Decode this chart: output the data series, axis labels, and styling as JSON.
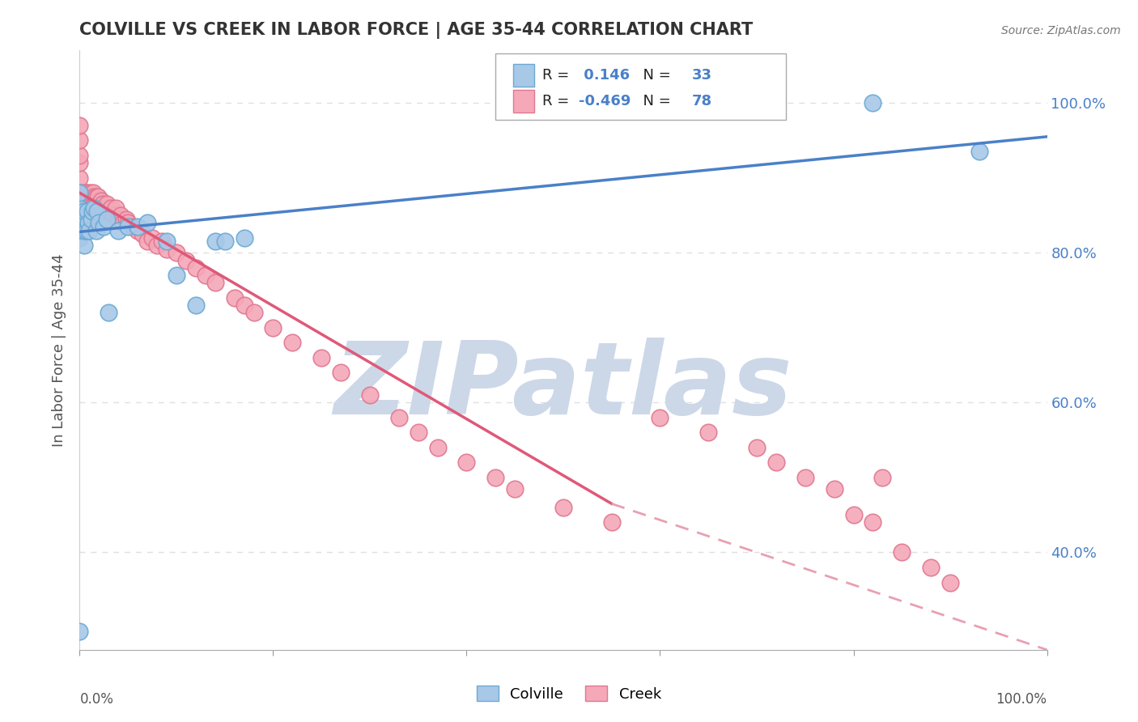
{
  "title": "COLVILLE VS CREEK IN LABOR FORCE | AGE 35-44 CORRELATION CHART",
  "source": "Source: ZipAtlas.com",
  "ylabel": "In Labor Force | Age 35-44",
  "xlim": [
    0.0,
    1.0
  ],
  "ylim": [
    0.27,
    1.07
  ],
  "colville_color": "#a8c8e8",
  "creek_color": "#f4a8b8",
  "colville_edge": "#6aaad4",
  "creek_edge": "#e07890",
  "trend_colville": "#4a80c8",
  "trend_creek": "#e05878",
  "trend_dashed_color": "#e8a0b0",
  "R_colville": 0.146,
  "N_colville": 33,
  "R_creek": -0.469,
  "N_creek": 78,
  "colville_x": [
    0.0,
    0.0,
    0.0,
    0.0,
    0.0,
    0.005,
    0.005,
    0.005,
    0.007,
    0.008,
    0.009,
    0.01,
    0.012,
    0.013,
    0.015,
    0.017,
    0.018,
    0.02,
    0.025,
    0.028,
    0.03,
    0.04,
    0.05,
    0.06,
    0.07,
    0.09,
    0.1,
    0.12,
    0.14,
    0.15,
    0.17,
    0.82,
    0.93
  ],
  "colville_y": [
    0.295,
    0.82,
    0.84,
    0.86,
    0.88,
    0.81,
    0.83,
    0.855,
    0.83,
    0.855,
    0.84,
    0.83,
    0.845,
    0.855,
    0.86,
    0.83,
    0.855,
    0.84,
    0.835,
    0.845,
    0.72,
    0.83,
    0.835,
    0.835,
    0.84,
    0.815,
    0.77,
    0.73,
    0.815,
    0.815,
    0.82,
    1.0,
    0.935
  ],
  "creek_x": [
    0.0,
    0.0,
    0.0,
    0.0,
    0.0,
    0.0,
    0.003,
    0.005,
    0.006,
    0.007,
    0.008,
    0.009,
    0.01,
    0.011,
    0.012,
    0.013,
    0.014,
    0.015,
    0.016,
    0.017,
    0.018,
    0.019,
    0.02,
    0.022,
    0.024,
    0.025,
    0.026,
    0.028,
    0.03,
    0.032,
    0.035,
    0.037,
    0.04,
    0.042,
    0.045,
    0.048,
    0.05,
    0.055,
    0.06,
    0.065,
    0.07,
    0.075,
    0.08,
    0.085,
    0.09,
    0.1,
    0.11,
    0.12,
    0.13,
    0.14,
    0.16,
    0.17,
    0.18,
    0.2,
    0.22,
    0.25,
    0.27,
    0.3,
    0.33,
    0.35,
    0.37,
    0.4,
    0.43,
    0.45,
    0.5,
    0.55,
    0.6,
    0.65,
    0.7,
    0.72,
    0.75,
    0.78,
    0.8,
    0.82,
    0.83,
    0.85,
    0.88,
    0.9
  ],
  "creek_y": [
    0.88,
    0.9,
    0.92,
    0.93,
    0.95,
    0.97,
    0.88,
    0.875,
    0.88,
    0.875,
    0.88,
    0.87,
    0.875,
    0.88,
    0.87,
    0.875,
    0.88,
    0.875,
    0.87,
    0.875,
    0.87,
    0.875,
    0.865,
    0.87,
    0.865,
    0.855,
    0.86,
    0.865,
    0.855,
    0.86,
    0.85,
    0.86,
    0.845,
    0.85,
    0.84,
    0.845,
    0.84,
    0.835,
    0.83,
    0.825,
    0.815,
    0.82,
    0.81,
    0.815,
    0.805,
    0.8,
    0.79,
    0.78,
    0.77,
    0.76,
    0.74,
    0.73,
    0.72,
    0.7,
    0.68,
    0.66,
    0.64,
    0.61,
    0.58,
    0.56,
    0.54,
    0.52,
    0.5,
    0.485,
    0.46,
    0.44,
    0.58,
    0.56,
    0.54,
    0.52,
    0.5,
    0.485,
    0.45,
    0.44,
    0.5,
    0.4,
    0.38,
    0.36
  ],
  "background_color": "#ffffff",
  "grid_color": "#e0e0e0",
  "watermark_text": "ZIPatlas",
  "watermark_color": "#ccd8e8",
  "ytick_labels_right": [
    "100.0%",
    "80.0%",
    "60.0%",
    "40.0%"
  ],
  "ytick_values": [
    1.0,
    0.8,
    0.6,
    0.4
  ],
  "xtick_left_label": "0.0%",
  "xtick_right_label": "100.0%",
  "colville_label": "Colville",
  "creek_label": "Creek",
  "legend_colville_text": "R =  0.146   N = 33",
  "legend_creek_text": "R = -0.469   N = 78",
  "creek_trend_solid_end": 0.55,
  "blue_trend_start_y": 0.828,
  "blue_trend_end_y": 0.955,
  "pink_trend_start_y": 0.88,
  "pink_trend_end_solid_y": 0.465,
  "pink_trend_end_dashed_y": 0.27
}
